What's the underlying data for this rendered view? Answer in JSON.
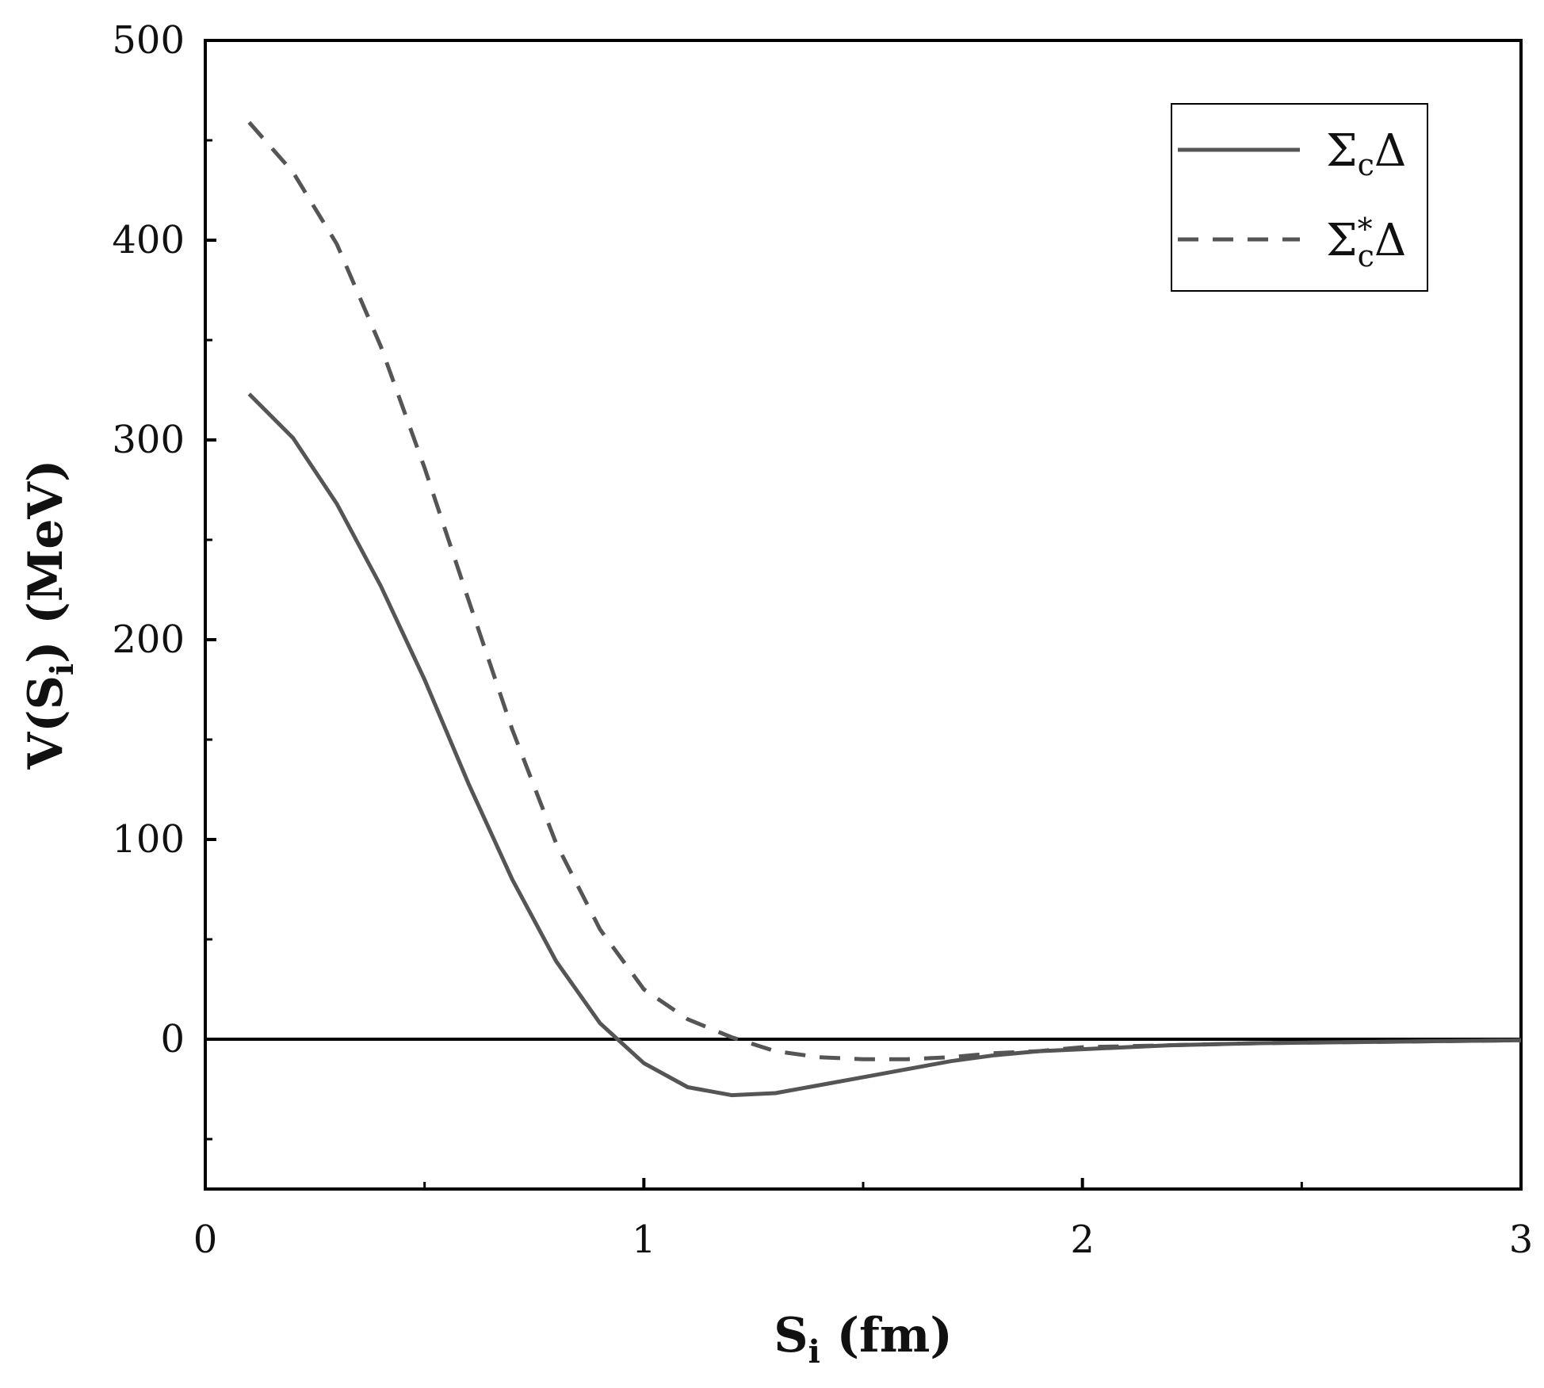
{
  "chart_data": {
    "type": "line",
    "xlim": [
      0,
      3
    ],
    "ylim": [
      -75,
      500
    ],
    "x_ticks": [
      "0",
      "1",
      "2",
      "3"
    ],
    "y_ticks": [
      "0",
      "100",
      "200",
      "300",
      "400",
      "500"
    ],
    "x_ticks_values": [
      0,
      1,
      2,
      3
    ],
    "y_ticks_values": [
      0,
      100,
      200,
      300,
      400,
      500
    ],
    "xlabel": {
      "base": "S",
      "sub": "i",
      "rest": " (fm)"
    },
    "ylabel": {
      "pre": "V(S",
      "sub": "i",
      "post": ") (MeV)"
    },
    "zero_line": true,
    "legend_position": "top-right",
    "series": [
      {
        "name": "ΣcΔ",
        "legend": {
          "main": "Σ",
          "sub": "c",
          "sup": "",
          "tail": "Δ"
        },
        "style": "solid",
        "color": "#555555",
        "x": [
          0.1,
          0.2,
          0.3,
          0.4,
          0.5,
          0.6,
          0.7,
          0.8,
          0.9,
          1.0,
          1.1,
          1.2,
          1.3,
          1.4,
          1.5,
          1.6,
          1.7,
          1.8,
          1.9,
          2.0,
          2.2,
          2.4,
          2.6,
          2.8,
          3.0
        ],
        "y": [
          323,
          301,
          268,
          227,
          180,
          128,
          80,
          39,
          8,
          -12,
          -24,
          -28,
          -27,
          -23,
          -19,
          -15,
          -11,
          -8,
          -6,
          -5,
          -3,
          -2,
          -1.5,
          -1,
          -0.5
        ]
      },
      {
        "name": "Σc*Δ",
        "legend": {
          "main": "Σ",
          "sub": "c",
          "sup": "*",
          "tail": "Δ"
        },
        "style": "dashed",
        "color": "#555555",
        "x": [
          0.1,
          0.2,
          0.3,
          0.4,
          0.5,
          0.6,
          0.7,
          0.8,
          0.9,
          1.0,
          1.1,
          1.2,
          1.3,
          1.4,
          1.5,
          1.6,
          1.7,
          1.8,
          1.9,
          2.0,
          2.2,
          2.4,
          2.6,
          2.8,
          3.0
        ],
        "y": [
          459,
          434,
          398,
          347,
          286,
          220,
          155,
          98,
          55,
          25,
          10,
          1,
          -6,
          -9,
          -10,
          -10,
          -9,
          -7,
          -6,
          -4,
          -3,
          -2,
          -1.5,
          -1,
          -0.5
        ]
      }
    ]
  }
}
